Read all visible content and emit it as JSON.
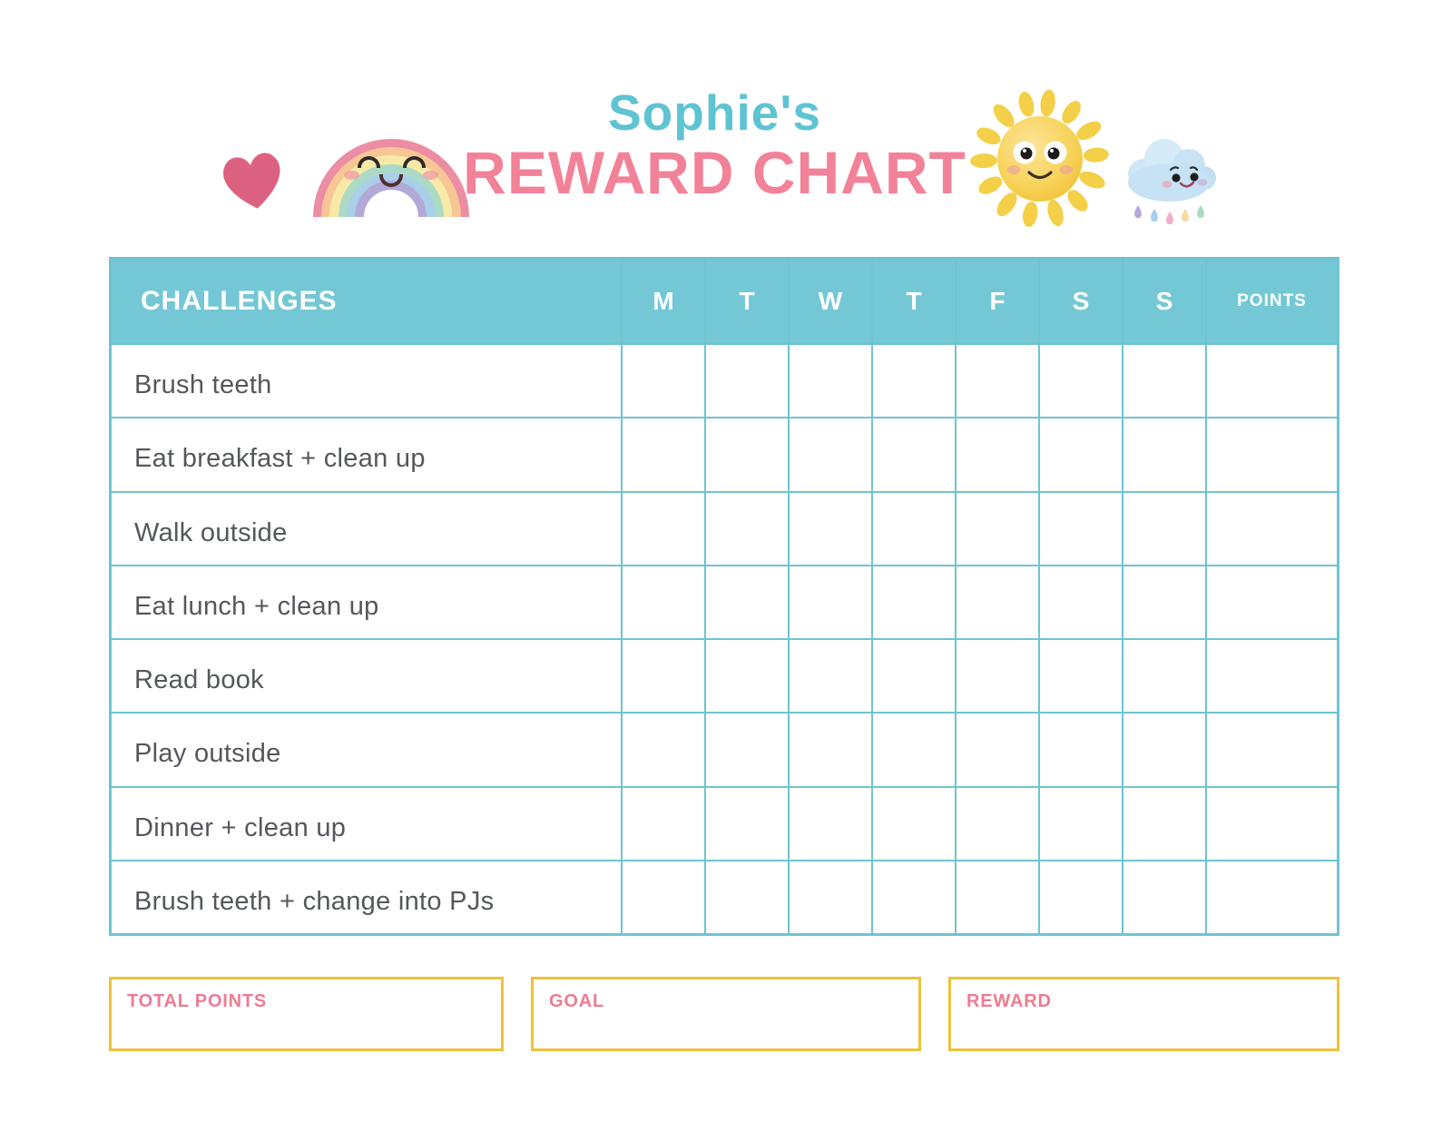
{
  "header": {
    "name": "Sophie's",
    "title": "REWARD CHART"
  },
  "table": {
    "challenges_header": "CHALLENGES",
    "day_headers": [
      "M",
      "T",
      "W",
      "T",
      "F",
      "S",
      "S"
    ],
    "points_header": "POINTS",
    "rows": [
      "Brush teeth",
      "Eat breakfast + clean up",
      "Walk outside",
      "Eat lunch + clean up",
      "Read book",
      "Play outside",
      "Dinner + clean up",
      "Brush teeth + change into PJs"
    ]
  },
  "footer": {
    "boxes": [
      {
        "label": "TOTAL POINTS",
        "value": ""
      },
      {
        "label": "GOAL",
        "value": ""
      },
      {
        "label": "REWARD",
        "value": ""
      }
    ]
  },
  "icons": {
    "heart": "heart-icon",
    "rainbow": "rainbow-icon",
    "sun": "sun-icon",
    "rain_cloud": "rain-cloud-icon"
  },
  "colors": {
    "table_teal": "#74c8d5",
    "grid_line_teal": "#6ec4d2",
    "title_teal": "#5ec3d2",
    "title_pink": "#f28298",
    "label_pink": "#ee7b91",
    "box_border_yellow": "#ecc23a",
    "challenge_text_gray": "#54575c",
    "raindrop_colors": [
      "#b9a6da",
      "#a7cdf0",
      "#f0aec8",
      "#f3dc9e",
      "#a9dcc0"
    ]
  }
}
